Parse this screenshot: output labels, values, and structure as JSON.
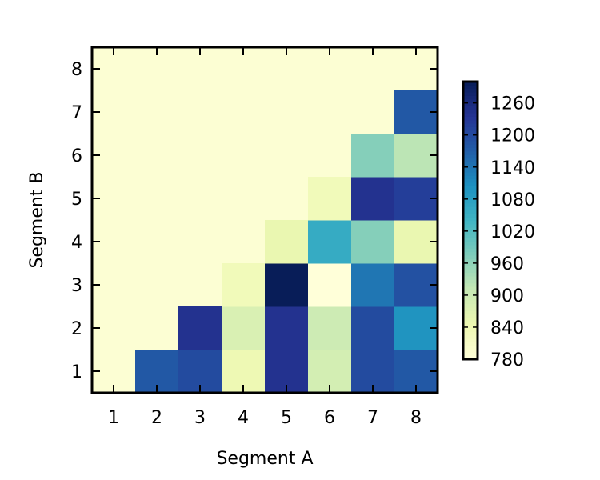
{
  "chart_data": {
    "type": "heatmap",
    "xlabel": "Segment A",
    "ylabel": "Segment B",
    "x_ticks": [
      "1",
      "2",
      "3",
      "4",
      "5",
      "6",
      "7",
      "8"
    ],
    "y_ticks": [
      "1",
      "2",
      "3",
      "4",
      "5",
      "6",
      "7",
      "8"
    ],
    "cells": [
      {
        "a": 1,
        "b": 1,
        "value": 790
      },
      {
        "a": 2,
        "b": 1,
        "value": 1180
      },
      {
        "a": 3,
        "b": 1,
        "value": 1200
      },
      {
        "a": 4,
        "b": 1,
        "value": 840
      },
      {
        "a": 5,
        "b": 1,
        "value": 1240
      },
      {
        "a": 6,
        "b": 1,
        "value": 890
      },
      {
        "a": 7,
        "b": 1,
        "value": 1200
      },
      {
        "a": 8,
        "b": 1,
        "value": 1180
      },
      {
        "a": 3,
        "b": 2,
        "value": 1240
      },
      {
        "a": 4,
        "b": 2,
        "value": 880
      },
      {
        "a": 5,
        "b": 2,
        "value": 1240
      },
      {
        "a": 6,
        "b": 2,
        "value": 900
      },
      {
        "a": 7,
        "b": 2,
        "value": 1200
      },
      {
        "a": 8,
        "b": 2,
        "value": 1100
      },
      {
        "a": 4,
        "b": 3,
        "value": 830
      },
      {
        "a": 5,
        "b": 3,
        "value": 1300
      },
      {
        "a": 6,
        "b": 3,
        "value": 780
      },
      {
        "a": 7,
        "b": 3,
        "value": 1140
      },
      {
        "a": 8,
        "b": 3,
        "value": 1190
      },
      {
        "a": 5,
        "b": 4,
        "value": 850
      },
      {
        "a": 6,
        "b": 4,
        "value": 1060
      },
      {
        "a": 7,
        "b": 4,
        "value": 970
      },
      {
        "a": 8,
        "b": 4,
        "value": 850
      },
      {
        "a": 6,
        "b": 5,
        "value": 830
      },
      {
        "a": 7,
        "b": 5,
        "value": 1240
      },
      {
        "a": 8,
        "b": 5,
        "value": 1220
      },
      {
        "a": 7,
        "b": 6,
        "value": 970
      },
      {
        "a": 8,
        "b": 6,
        "value": 920
      },
      {
        "a": 8,
        "b": 7,
        "value": 1180
      }
    ],
    "background_value": 790,
    "xlim": [
      0.5,
      8.5
    ],
    "ylim": [
      0.5,
      8.5
    ],
    "colorbar": {
      "min": 780,
      "max": 1300,
      "ticks": [
        780,
        840,
        900,
        960,
        1020,
        1080,
        1140,
        1200,
        1260
      ]
    },
    "colormap": [
      "#ffffd9",
      "#edf8b1",
      "#c7e9b4",
      "#7fcdbb",
      "#41b6c4",
      "#1d91c0",
      "#225ea8",
      "#253494",
      "#081d58"
    ]
  }
}
